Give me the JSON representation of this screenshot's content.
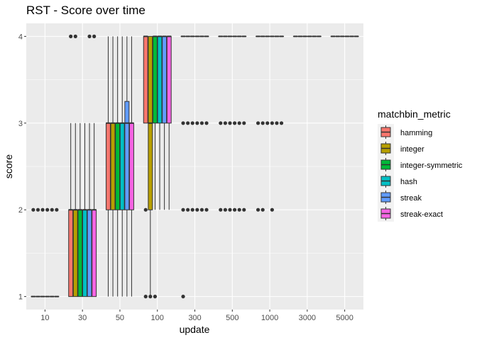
{
  "chart_data": {
    "type": "boxplot",
    "title": "RST - Score over time",
    "xlabel": "update",
    "ylabel": "score",
    "categories": [
      "10",
      "30",
      "50",
      "100",
      "300",
      "500",
      "1000",
      "3000",
      "5000"
    ],
    "y_ticks": [
      1,
      2,
      3,
      4
    ],
    "ylim": [
      0.85,
      4.15
    ],
    "grid": true,
    "legend": {
      "title": "matchbin_metric",
      "position": "right",
      "entries": [
        "hamming",
        "integer",
        "integer-symmetric",
        "hash",
        "streak",
        "streak-exact"
      ],
      "colors": [
        "#F8766D",
        "#B79F00",
        "#00BA38",
        "#00BFC4",
        "#619CFF",
        "#F564E3"
      ]
    },
    "series": [
      {
        "name": "hamming",
        "boxes": [
          {
            "x": "10",
            "q1": 1,
            "median": 1,
            "q3": 1,
            "whisker_low": 1,
            "whisker_high": 1,
            "outliers": [
              2
            ]
          },
          {
            "x": "30",
            "q1": 1,
            "median": 2,
            "q3": 2,
            "whisker_low": 1,
            "whisker_high": 3,
            "outliers": [
              4
            ]
          },
          {
            "x": "50",
            "q1": 2,
            "median": 3,
            "q3": 3,
            "whisker_low": 1,
            "whisker_high": 4,
            "outliers": []
          },
          {
            "x": "100",
            "q1": 3,
            "median": 4,
            "q3": 4,
            "whisker_low": 3,
            "whisker_high": 4,
            "outliers": [
              1,
              2
            ]
          },
          {
            "x": "300",
            "q1": 4,
            "median": 4,
            "q3": 4,
            "whisker_low": 4,
            "whisker_high": 4,
            "outliers": [
              1,
              2,
              3
            ]
          },
          {
            "x": "500",
            "q1": 4,
            "median": 4,
            "q3": 4,
            "whisker_low": 4,
            "whisker_high": 4,
            "outliers": [
              2,
              3
            ]
          },
          {
            "x": "1000",
            "q1": 4,
            "median": 4,
            "q3": 4,
            "whisker_low": 4,
            "whisker_high": 4,
            "outliers": [
              2,
              3
            ]
          },
          {
            "x": "3000",
            "q1": 4,
            "median": 4,
            "q3": 4,
            "whisker_low": 4,
            "whisker_high": 4,
            "outliers": []
          },
          {
            "x": "5000",
            "q1": 4,
            "median": 4,
            "q3": 4,
            "whisker_low": 4,
            "whisker_high": 4,
            "outliers": []
          }
        ]
      },
      {
        "name": "integer",
        "boxes": [
          {
            "x": "10",
            "q1": 1,
            "median": 1,
            "q3": 1,
            "whisker_low": 1,
            "whisker_high": 1,
            "outliers": [
              2
            ]
          },
          {
            "x": "30",
            "q1": 1,
            "median": 2,
            "q3": 2,
            "whisker_low": 1,
            "whisker_high": 3,
            "outliers": [
              4
            ]
          },
          {
            "x": "50",
            "q1": 2,
            "median": 3,
            "q3": 3,
            "whisker_low": 1,
            "whisker_high": 4,
            "outliers": []
          },
          {
            "x": "100",
            "q1": 2,
            "median": 3,
            "q3": 4,
            "whisker_low": 1,
            "whisker_high": 4,
            "outliers": [
              1
            ]
          },
          {
            "x": "300",
            "q1": 4,
            "median": 4,
            "q3": 4,
            "whisker_low": 4,
            "whisker_high": 4,
            "outliers": [
              2,
              3
            ]
          },
          {
            "x": "500",
            "q1": 4,
            "median": 4,
            "q3": 4,
            "whisker_low": 4,
            "whisker_high": 4,
            "outliers": [
              2,
              3
            ]
          },
          {
            "x": "1000",
            "q1": 4,
            "median": 4,
            "q3": 4,
            "whisker_low": 4,
            "whisker_high": 4,
            "outliers": [
              2,
              3
            ]
          },
          {
            "x": "3000",
            "q1": 4,
            "median": 4,
            "q3": 4,
            "whisker_low": 4,
            "whisker_high": 4,
            "outliers": []
          },
          {
            "x": "5000",
            "q1": 4,
            "median": 4,
            "q3": 4,
            "whisker_low": 4,
            "whisker_high": 4,
            "outliers": []
          }
        ]
      },
      {
        "name": "integer-symmetric",
        "boxes": [
          {
            "x": "10",
            "q1": 1,
            "median": 1,
            "q3": 1,
            "whisker_low": 1,
            "whisker_high": 1,
            "outliers": [
              2
            ]
          },
          {
            "x": "30",
            "q1": 1,
            "median": 2,
            "q3": 2,
            "whisker_low": 1,
            "whisker_high": 3,
            "outliers": []
          },
          {
            "x": "50",
            "q1": 2,
            "median": 3,
            "q3": 3,
            "whisker_low": 1,
            "whisker_high": 4,
            "outliers": []
          },
          {
            "x": "100",
            "q1": 3,
            "median": 4,
            "q3": 4,
            "whisker_low": 2,
            "whisker_high": 4,
            "outliers": [
              1
            ]
          },
          {
            "x": "300",
            "q1": 4,
            "median": 4,
            "q3": 4,
            "whisker_low": 4,
            "whisker_high": 4,
            "outliers": [
              2,
              3
            ]
          },
          {
            "x": "500",
            "q1": 4,
            "median": 4,
            "q3": 4,
            "whisker_low": 4,
            "whisker_high": 4,
            "outliers": [
              2,
              3
            ]
          },
          {
            "x": "1000",
            "q1": 4,
            "median": 4,
            "q3": 4,
            "whisker_low": 4,
            "whisker_high": 4,
            "outliers": [
              3
            ]
          },
          {
            "x": "3000",
            "q1": 4,
            "median": 4,
            "q3": 4,
            "whisker_low": 4,
            "whisker_high": 4,
            "outliers": []
          },
          {
            "x": "5000",
            "q1": 4,
            "median": 4,
            "q3": 4,
            "whisker_low": 4,
            "whisker_high": 4,
            "outliers": []
          }
        ]
      },
      {
        "name": "hash",
        "boxes": [
          {
            "x": "10",
            "q1": 1,
            "median": 1,
            "q3": 1,
            "whisker_low": 1,
            "whisker_high": 1,
            "outliers": [
              2
            ]
          },
          {
            "x": "30",
            "q1": 1,
            "median": 2,
            "q3": 2,
            "whisker_low": 1,
            "whisker_high": 3,
            "outliers": []
          },
          {
            "x": "50",
            "q1": 2,
            "median": 3,
            "q3": 3,
            "whisker_low": 1,
            "whisker_high": 4,
            "outliers": []
          },
          {
            "x": "100",
            "q1": 3,
            "median": 4,
            "q3": 4,
            "whisker_low": 2,
            "whisker_high": 4,
            "outliers": []
          },
          {
            "x": "300",
            "q1": 4,
            "median": 4,
            "q3": 4,
            "whisker_low": 4,
            "whisker_high": 4,
            "outliers": [
              2,
              3
            ]
          },
          {
            "x": "500",
            "q1": 4,
            "median": 4,
            "q3": 4,
            "whisker_low": 4,
            "whisker_high": 4,
            "outliers": [
              2,
              3
            ]
          },
          {
            "x": "1000",
            "q1": 4,
            "median": 4,
            "q3": 4,
            "whisker_low": 4,
            "whisker_high": 4,
            "outliers": [
              2,
              3
            ]
          },
          {
            "x": "3000",
            "q1": 4,
            "median": 4,
            "q3": 4,
            "whisker_low": 4,
            "whisker_high": 4,
            "outliers": []
          },
          {
            "x": "5000",
            "q1": 4,
            "median": 4,
            "q3": 4,
            "whisker_low": 4,
            "whisker_high": 4,
            "outliers": []
          }
        ]
      },
      {
        "name": "streak",
        "boxes": [
          {
            "x": "10",
            "q1": 1,
            "median": 1,
            "q3": 1,
            "whisker_low": 1,
            "whisker_high": 1,
            "outliers": [
              2
            ]
          },
          {
            "x": "30",
            "q1": 1,
            "median": 2,
            "q3": 2,
            "whisker_low": 1,
            "whisker_high": 3,
            "outliers": [
              4
            ]
          },
          {
            "x": "50",
            "q1": 2,
            "median": 3,
            "q3": 3.25,
            "whisker_low": 1,
            "whisker_high": 4,
            "outliers": []
          },
          {
            "x": "100",
            "q1": 3,
            "median": 4,
            "q3": 4,
            "whisker_low": 2,
            "whisker_high": 4,
            "outliers": []
          },
          {
            "x": "300",
            "q1": 4,
            "median": 4,
            "q3": 4,
            "whisker_low": 4,
            "whisker_high": 4,
            "outliers": [
              2,
              3
            ]
          },
          {
            "x": "500",
            "q1": 4,
            "median": 4,
            "q3": 4,
            "whisker_low": 4,
            "whisker_high": 4,
            "outliers": [
              2,
              3
            ]
          },
          {
            "x": "1000",
            "q1": 4,
            "median": 4,
            "q3": 4,
            "whisker_low": 4,
            "whisker_high": 4,
            "outliers": [
              3
            ]
          },
          {
            "x": "3000",
            "q1": 4,
            "median": 4,
            "q3": 4,
            "whisker_low": 4,
            "whisker_high": 4,
            "outliers": []
          },
          {
            "x": "5000",
            "q1": 4,
            "median": 4,
            "q3": 4,
            "whisker_low": 4,
            "whisker_high": 4,
            "outliers": []
          }
        ]
      },
      {
        "name": "streak-exact",
        "boxes": [
          {
            "x": "10",
            "q1": 1,
            "median": 1,
            "q3": 1,
            "whisker_low": 1,
            "whisker_high": 1,
            "outliers": [
              2
            ]
          },
          {
            "x": "30",
            "q1": 1,
            "median": 2,
            "q3": 2,
            "whisker_low": 1,
            "whisker_high": 3,
            "outliers": [
              4
            ]
          },
          {
            "x": "50",
            "q1": 2,
            "median": 3,
            "q3": 3,
            "whisker_low": 1,
            "whisker_high": 4,
            "outliers": []
          },
          {
            "x": "100",
            "q1": 3,
            "median": 4,
            "q3": 4,
            "whisker_low": 2,
            "whisker_high": 4,
            "outliers": []
          },
          {
            "x": "300",
            "q1": 4,
            "median": 4,
            "q3": 4,
            "whisker_low": 4,
            "whisker_high": 4,
            "outliers": [
              2,
              3
            ]
          },
          {
            "x": "500",
            "q1": 4,
            "median": 4,
            "q3": 4,
            "whisker_low": 4,
            "whisker_high": 4,
            "outliers": [
              2,
              3
            ]
          },
          {
            "x": "1000",
            "q1": 4,
            "median": 4,
            "q3": 4,
            "whisker_low": 4,
            "whisker_high": 4,
            "outliers": [
              3
            ]
          },
          {
            "x": "3000",
            "q1": 4,
            "median": 4,
            "q3": 4,
            "whisker_low": 4,
            "whisker_high": 4,
            "outliers": []
          },
          {
            "x": "5000",
            "q1": 4,
            "median": 4,
            "q3": 4,
            "whisker_low": 4,
            "whisker_high": 4,
            "outliers": []
          }
        ]
      }
    ]
  }
}
